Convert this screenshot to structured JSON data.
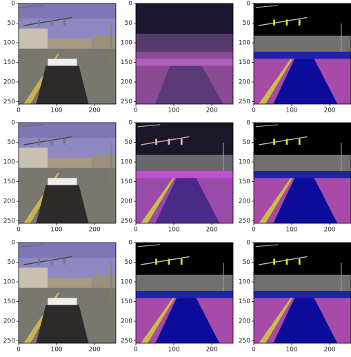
{
  "chart_data": [
    {
      "type": "image",
      "xlim": [
        0,
        256
      ],
      "ylim": [
        256,
        0
      ],
      "xticks": [
        0,
        100,
        200
      ],
      "yticks": [
        0,
        50,
        100,
        150,
        200,
        250
      ]
    },
    {
      "type": "image",
      "xlim": [
        0,
        256
      ],
      "ylim": [
        256,
        0
      ],
      "xticks": [
        0,
        100,
        200
      ],
      "yticks": [
        0,
        50,
        100,
        150,
        200,
        250
      ]
    },
    {
      "type": "image",
      "xlim": [
        0,
        256
      ],
      "ylim": [
        256,
        0
      ],
      "xticks": [
        0,
        100,
        200
      ],
      "yticks": [
        0,
        50,
        100,
        150,
        200,
        250
      ]
    },
    {
      "type": "image",
      "xlim": [
        0,
        256
      ],
      "ylim": [
        256,
        0
      ],
      "xticks": [
        0,
        100,
        200
      ],
      "yticks": [
        0,
        50,
        100,
        150,
        200,
        250
      ]
    },
    {
      "type": "image",
      "xlim": [
        0,
        256
      ],
      "ylim": [
        256,
        0
      ],
      "xticks": [
        0,
        100,
        200
      ],
      "yticks": [
        0,
        50,
        100,
        150,
        200,
        250
      ]
    },
    {
      "type": "image",
      "xlim": [
        0,
        256
      ],
      "ylim": [
        256,
        0
      ],
      "xticks": [
        0,
        100,
        200
      ],
      "yticks": [
        0,
        50,
        100,
        150,
        200,
        250
      ]
    },
    {
      "type": "image",
      "xlim": [
        0,
        256
      ],
      "ylim": [
        256,
        0
      ],
      "xticks": [
        0,
        100,
        200
      ],
      "yticks": [
        0,
        50,
        100,
        150,
        200,
        250
      ]
    },
    {
      "type": "image",
      "xlim": [
        0,
        256
      ],
      "ylim": [
        256,
        0
      ],
      "xticks": [
        0,
        100,
        200
      ],
      "yticks": [
        0,
        50,
        100,
        150,
        200,
        250
      ]
    },
    {
      "type": "image",
      "xlim": [
        0,
        256
      ],
      "ylim": [
        256,
        0
      ],
      "xticks": [
        0,
        100,
        200
      ],
      "yticks": [
        0,
        50,
        100,
        150,
        200,
        250
      ]
    }
  ]
}
